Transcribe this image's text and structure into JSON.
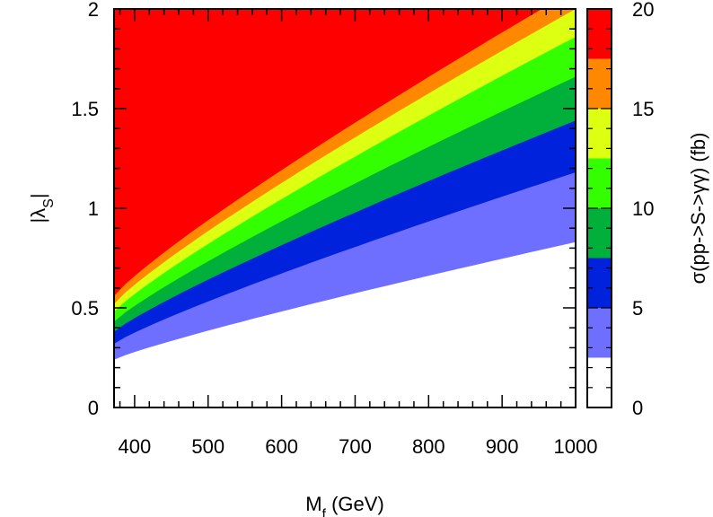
{
  "chart_data": {
    "type": "heatmap",
    "xlabel": {
      "main": "M",
      "sub": "f",
      "unit": " (GeV)"
    },
    "ylabel": {
      "pre": "|λ",
      "sub": "S",
      "post": "|"
    },
    "colorbar_label": "σ(pp->S->γγ) (fb)",
    "xlim": [
      372,
      1000
    ],
    "ylim": [
      0,
      2
    ],
    "x_ticks": [
      400,
      500,
      600,
      700,
      800,
      900,
      1000
    ],
    "x_tick_labels": [
      "400",
      "500",
      "600",
      "700",
      "800",
      "900",
      "1000"
    ],
    "y_ticks": [
      0,
      0.5,
      1,
      1.5,
      2
    ],
    "y_tick_labels": [
      "0",
      "0.5",
      "1",
      "1.5",
      "2"
    ],
    "colorbar_ticks": [
      0,
      5,
      10,
      15,
      20
    ],
    "colorbar_tick_labels": [
      "0",
      "5",
      "10",
      "15",
      "20"
    ],
    "colorbar_range": [
      0,
      20
    ],
    "levels": [
      {
        "min": 0,
        "max": 2.5,
        "color": "#ffffff"
      },
      {
        "min": 2.5,
        "max": 5,
        "color": "#6e6eff"
      },
      {
        "min": 5,
        "max": 7.5,
        "color": "#0022dd"
      },
      {
        "min": 7.5,
        "max": 10,
        "color": "#00b03a"
      },
      {
        "min": 10,
        "max": 12.5,
        "color": "#33ff00"
      },
      {
        "min": 12.5,
        "max": 15,
        "color": "#ddff11"
      },
      {
        "min": 15,
        "max": 17.5,
        "color": "#ff8800"
      },
      {
        "min": 17.5,
        "max": 20,
        "color": "#ff0000"
      }
    ],
    "contour_x": [
      372,
      1000
    ],
    "contours": [
      {
        "level": 2.5,
        "y": [
          0.24,
          0.83
        ]
      },
      {
        "level": 5,
        "y": [
          0.32,
          1.18
        ]
      },
      {
        "level": 7.5,
        "y": [
          0.38,
          1.44
        ]
      },
      {
        "level": 10,
        "y": [
          0.43,
          1.66
        ]
      },
      {
        "level": 12.5,
        "y": [
          0.48,
          1.86
        ]
      },
      {
        "level": 15,
        "y": [
          0.52,
          2.0
        ]
      },
      {
        "level": 17.5,
        "y": [
          0.56,
          2.1
        ]
      }
    ]
  }
}
